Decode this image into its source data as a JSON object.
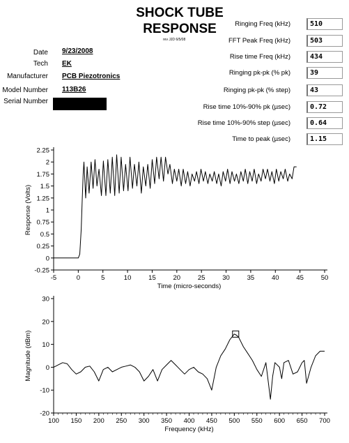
{
  "header": {
    "title_line1": "SHOCK TUBE",
    "title_line2": "RESPONSE",
    "revision": "rev JJD 6/5/08"
  },
  "info": [
    {
      "key": "date",
      "label": "Date",
      "value": "9/23/2008"
    },
    {
      "key": "tech",
      "label": "Tech",
      "value": "EK"
    },
    {
      "key": "manufacturer",
      "label": "Manufacturer",
      "value": "PCB Piezotronics"
    },
    {
      "key": "model",
      "label": "Model Number",
      "value": "113B26"
    },
    {
      "key": "serial",
      "label": "Serial Number",
      "value": ""
    }
  ],
  "measurements": [
    {
      "label": "Ringing Freq (kHz)",
      "value": "510"
    },
    {
      "label": "FFT Peak Freq (kHz)",
      "value": "503"
    },
    {
      "label": "Rise time Freq (kHz)",
      "value": "434"
    },
    {
      "label": "Ringing pk-pk (% pk)",
      "value": "39"
    },
    {
      "label": "Ringing pk-pk (% step)",
      "value": "43"
    },
    {
      "label": "Rise  time 10%-90% pk (µsec)",
      "value": "0.72"
    },
    {
      "label": "Rise  time 10%-90% step (µsec)",
      "value": "0.64"
    },
    {
      "label": "Time to peak  (µsec)",
      "value": "1.15"
    }
  ],
  "chart_data": [
    {
      "type": "line",
      "xlabel": "Time (micro-seconds)",
      "ylabel": "Response (Volts)",
      "xlim": [
        -5,
        50
      ],
      "ylim": [
        -0.25,
        2.25
      ],
      "xticks": [
        -5,
        0,
        5,
        10,
        15,
        20,
        25,
        30,
        35,
        40,
        45,
        50
      ],
      "yticks": [
        -0.25,
        0,
        0.25,
        0.5,
        0.75,
        1,
        1.25,
        1.5,
        1.75,
        2,
        2.25
      ],
      "ytick_labels": [
        "-0.25",
        "0",
        "0.25",
        "0.5",
        "0.75",
        "1",
        "1.25",
        "1.5",
        "1.75",
        "2",
        "2.25"
      ],
      "grid": false,
      "series": [
        {
          "x": [
            -5,
            -2,
            0,
            0.3,
            0.6,
            0.8,
            1.0,
            1.15,
            1.5,
            1.8,
            2.2,
            2.6,
            3.0,
            3.4,
            3.8,
            4.2,
            4.7,
            5.1,
            5.6,
            6.0,
            6.5,
            6.9,
            7.4,
            7.8,
            8.3,
            8.7,
            9.2,
            9.6,
            10.1,
            10.5,
            11.0,
            11.4,
            11.9,
            12.3,
            12.8,
            13.2,
            13.7,
            14.1,
            14.6,
            15.0,
            15.5,
            15.9,
            16.4,
            16.8,
            17.3,
            17.7,
            18.2,
            18.6,
            19.1,
            19.5,
            20.0,
            20.4,
            20.9,
            21.3,
            21.8,
            22.2,
            22.7,
            23.1,
            23.6,
            24.0,
            24.5,
            24.9,
            25.4,
            25.8,
            26.3,
            26.7,
            27.2,
            27.6,
            28.1,
            28.5,
            29.0,
            29.4,
            29.9,
            30.3,
            30.8,
            31.2,
            31.7,
            32.1,
            32.6,
            33.0,
            33.5,
            33.9,
            34.4,
            34.8,
            35.3,
            35.7,
            36.2,
            36.6,
            37.1,
            37.5,
            38.0,
            38.4,
            38.9,
            39.3,
            39.8,
            40.2,
            40.7,
            41.1,
            41.6,
            42.0,
            42.5,
            42.9,
            43.4,
            43.8,
            44.3
          ],
          "y": [
            0.0,
            0.0,
            0.0,
            0.08,
            0.6,
            1.2,
            1.75,
            2.0,
            1.25,
            1.9,
            1.35,
            2.0,
            1.45,
            2.05,
            1.5,
            1.85,
            1.3,
            2.02,
            1.3,
            2.05,
            1.35,
            2.1,
            1.3,
            2.15,
            1.35,
            2.1,
            1.4,
            1.95,
            1.4,
            2.1,
            1.45,
            1.95,
            1.5,
            2.0,
            1.35,
            1.9,
            1.5,
            1.95,
            1.45,
            2.05,
            1.55,
            2.1,
            1.65,
            2.1,
            1.6,
            2.1,
            1.75,
            1.95,
            1.55,
            1.85,
            1.6,
            1.85,
            1.5,
            1.85,
            1.55,
            1.8,
            1.5,
            1.75,
            1.6,
            1.8,
            1.55,
            1.85,
            1.6,
            1.8,
            1.55,
            1.75,
            1.6,
            1.8,
            1.55,
            1.75,
            1.5,
            1.8,
            1.6,
            1.85,
            1.55,
            1.8,
            1.6,
            1.75,
            1.55,
            1.8,
            1.6,
            1.85,
            1.55,
            1.8,
            1.6,
            1.85,
            1.55,
            1.75,
            1.6,
            1.85,
            1.65,
            1.85,
            1.6,
            1.8,
            1.55,
            1.85,
            1.6,
            1.8,
            1.65,
            1.85,
            1.6,
            1.75,
            1.65,
            1.9,
            1.9
          ]
        }
      ]
    },
    {
      "type": "line",
      "xlabel": "Frequency (kHz)",
      "ylabel": "Magnitude (dBm)",
      "xlim": [
        100,
        700
      ],
      "ylim": [
        -20,
        30
      ],
      "xticks": [
        100,
        150,
        200,
        250,
        300,
        350,
        400,
        450,
        500,
        550,
        600,
        650,
        700
      ],
      "yticks": [
        -20,
        -10,
        0,
        10,
        20,
        30
      ],
      "grid": false,
      "peak_marker": {
        "x": 503,
        "y": 14.5
      },
      "series": [
        {
          "x": [
            100,
            110,
            120,
            130,
            140,
            150,
            160,
            170,
            180,
            190,
            200,
            210,
            220,
            230,
            240,
            250,
            260,
            270,
            280,
            290,
            300,
            310,
            320,
            330,
            340,
            350,
            360,
            370,
            380,
            390,
            400,
            410,
            420,
            430,
            440,
            450,
            460,
            470,
            480,
            490,
            500,
            505,
            510,
            520,
            530,
            540,
            550,
            560,
            570,
            580,
            585,
            590,
            600,
            605,
            610,
            620,
            630,
            640,
            650,
            655,
            660,
            670,
            680,
            690,
            700
          ],
          "y": [
            0,
            1,
            2,
            1.5,
            -1,
            -3,
            -2,
            0,
            0.5,
            -2,
            -6,
            -1,
            0,
            -2,
            -1,
            0,
            0.5,
            1,
            0,
            -2,
            -6,
            -4,
            -1,
            -6,
            -1,
            1,
            3,
            1,
            -1,
            -3,
            -1,
            0,
            -2,
            -3,
            -5,
            -10,
            0,
            5,
            8,
            12,
            14.5,
            14,
            13,
            9,
            6,
            3,
            -1,
            -4,
            2,
            -14,
            -4,
            2,
            0,
            -5,
            2,
            3,
            -3,
            -2,
            2,
            3,
            -7,
            0,
            5,
            7,
            7
          ]
        }
      ]
    }
  ]
}
